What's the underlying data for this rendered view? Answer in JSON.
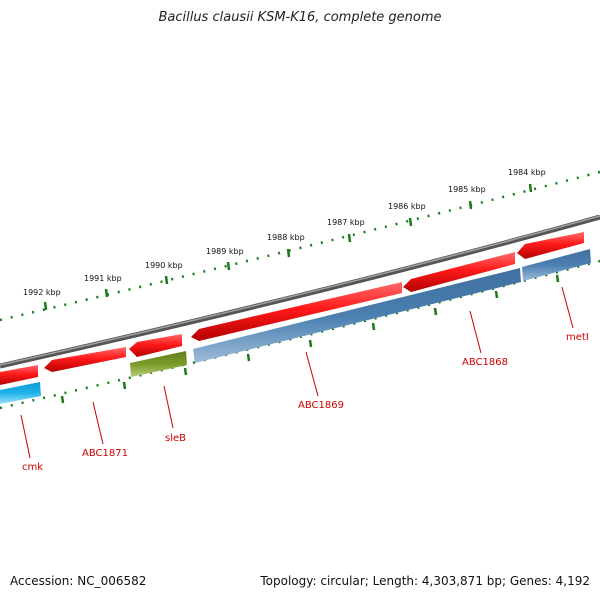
{
  "title": "Bacillus clausii KSM-K16, complete genome",
  "footer": {
    "accession": "Accession: NC_006582",
    "topology": "Topology: circular; Length: 4,303,871 bp; Genes: 4,192"
  },
  "ruler": {
    "ticks": [
      "1992 kbp",
      "1991 kbp",
      "1990 kbp",
      "1989 kbp",
      "1988 kbp",
      "1987 kbp",
      "1986 kbp",
      "1985 kbp",
      "1984 kbp"
    ]
  },
  "genes": [
    {
      "name": "cmk",
      "strand": "minus",
      "color": "#ff1a1a"
    },
    {
      "name": "ABC1871",
      "strand": "minus",
      "color": "#ff1a1a"
    },
    {
      "name": "sleB",
      "strand": "minus",
      "color": "#ff1a1a"
    },
    {
      "name": "ABC1869",
      "strand": "minus",
      "color": "#ff1a1a"
    },
    {
      "name": "ABC1868",
      "strand": "minus",
      "color": "#ff1a1a"
    },
    {
      "name": "metI",
      "strand": "minus",
      "color": "#ff1a1a"
    }
  ],
  "feature_colors": {
    "gene": "#ff1a1a",
    "cds_cyan": "#1fb3ea",
    "cds_olive": "#7a9a2a",
    "cds_blue": "#4a7fb0",
    "ruler": "#1a7a1a",
    "backbone": "#808080"
  }
}
